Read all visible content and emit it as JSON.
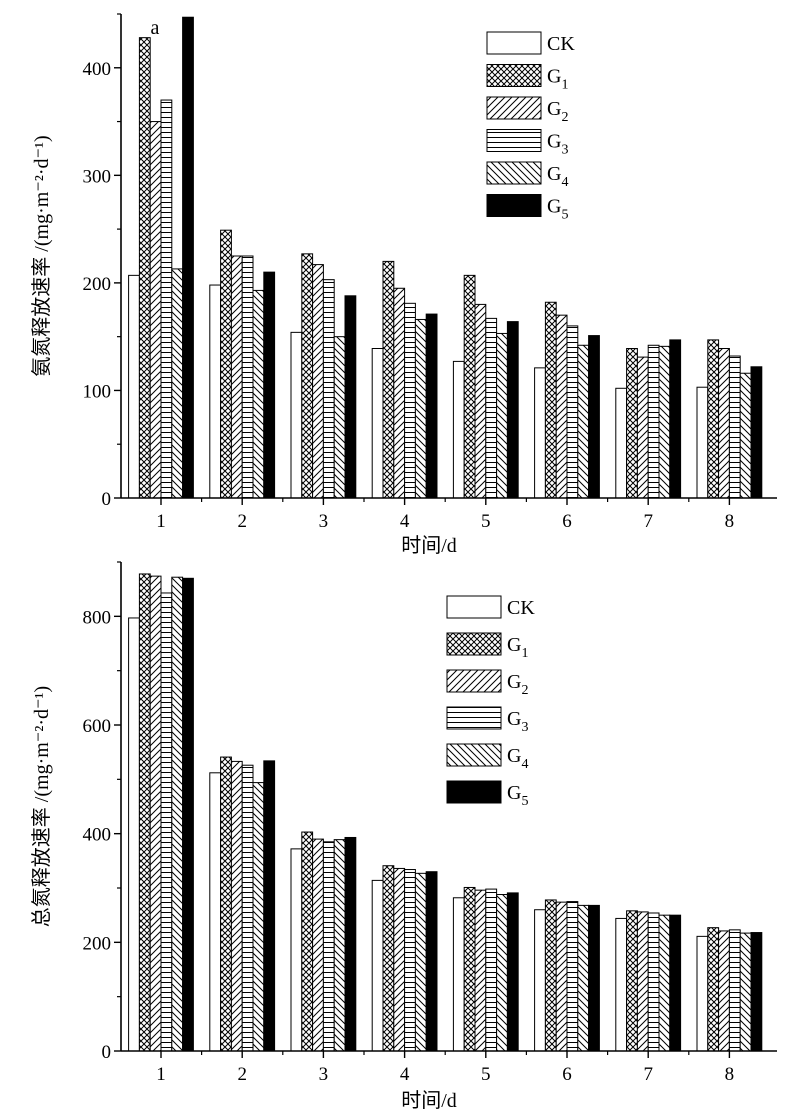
{
  "chart_data": [
    {
      "type": "bar",
      "categories": [
        "1",
        "2",
        "3",
        "4",
        "5",
        "6",
        "7",
        "8"
      ],
      "xlabel": "时间/d",
      "ylabel": "氨氮释放速率 /(mg·m⁻²·d⁻¹)",
      "ylim": [
        0,
        450
      ],
      "yticks": [
        0,
        100,
        200,
        300,
        400
      ],
      "legend_position": "top-right",
      "annotation": "a",
      "series": [
        {
          "name": "CK",
          "name_base": "CK",
          "name_sub": "",
          "pattern": "empty",
          "values": [
            207,
            198,
            154,
            139,
            127,
            121,
            102,
            103
          ]
        },
        {
          "name": "G1",
          "name_base": "G",
          "name_sub": "1",
          "pattern": "crosshatch",
          "values": [
            428,
            249,
            227,
            220,
            207,
            182,
            139,
            147
          ]
        },
        {
          "name": "G2",
          "name_base": "G",
          "name_sub": "2",
          "pattern": "diagonal-up",
          "values": [
            350,
            225,
            217,
            195,
            180,
            170,
            131,
            139
          ]
        },
        {
          "name": "G3",
          "name_base": "G",
          "name_sub": "3",
          "pattern": "horizontal",
          "values": [
            370,
            225,
            203,
            181,
            167,
            160,
            142,
            132
          ]
        },
        {
          "name": "G4",
          "name_base": "G",
          "name_sub": "4",
          "pattern": "diagonal-down",
          "values": [
            213,
            193,
            150,
            166,
            153,
            142,
            141,
            116
          ]
        },
        {
          "name": "G5",
          "name_base": "G",
          "name_sub": "5",
          "pattern": "solid",
          "values": [
            447,
            210,
            188,
            171,
            164,
            151,
            147,
            122
          ]
        }
      ]
    },
    {
      "type": "bar",
      "categories": [
        "1",
        "2",
        "3",
        "4",
        "5",
        "6",
        "7",
        "8"
      ],
      "xlabel": "时间/d",
      "ylabel": "总氮释放速率 /(mg·m⁻²·d⁻¹)",
      "ylim": [
        0,
        900
      ],
      "yticks": [
        0,
        200,
        400,
        600,
        800
      ],
      "legend_position": "top-right",
      "series": [
        {
          "name": "CK",
          "name_base": "CK",
          "name_sub": "",
          "pattern": "empty",
          "values": [
            797,
            512,
            372,
            314,
            282,
            260,
            244,
            211
          ]
        },
        {
          "name": "G1",
          "name_base": "G",
          "name_sub": "1",
          "pattern": "crosshatch",
          "values": [
            878,
            541,
            403,
            341,
            301,
            278,
            258,
            227
          ]
        },
        {
          "name": "G2",
          "name_base": "G",
          "name_sub": "2",
          "pattern": "diagonal-up",
          "values": [
            874,
            533,
            390,
            336,
            296,
            274,
            256,
            221
          ]
        },
        {
          "name": "G3",
          "name_base": "G",
          "name_sub": "3",
          "pattern": "horizontal",
          "values": [
            843,
            526,
            385,
            334,
            298,
            275,
            254,
            223
          ]
        },
        {
          "name": "G4",
          "name_base": "G",
          "name_sub": "4",
          "pattern": "diagonal-down",
          "values": [
            872,
            494,
            389,
            327,
            288,
            268,
            250,
            217
          ]
        },
        {
          "name": "G5",
          "name_base": "G",
          "name_sub": "5",
          "pattern": "solid",
          "values": [
            870,
            534,
            393,
            330,
            291,
            268,
            250,
            218
          ]
        }
      ]
    }
  ]
}
